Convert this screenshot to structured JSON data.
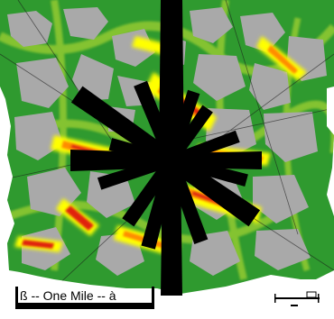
{
  "map": {
    "scale_label": "ß -- One Mile -- à"
  },
  "legend_colors": {
    "background": "#ffffff",
    "open_land": "#a9a9a9",
    "vegetation_low": "#2f9a2f",
    "vegetation_mid": "#9acd32",
    "hot_yellow": "#ffff00",
    "hot_orange": "#ff8c00",
    "hot_red": "#e02010",
    "rose_fill": "#000000"
  },
  "icons": [
    "wind-rose-icon",
    "scale-bar-icon"
  ]
}
